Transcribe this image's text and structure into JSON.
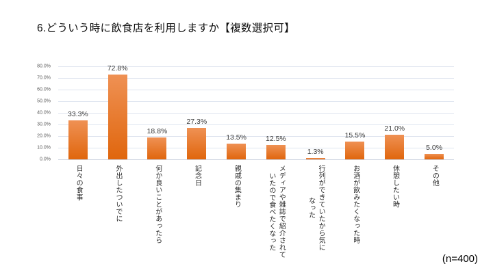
{
  "footnote": "(n=400)",
  "chart_data": {
    "type": "bar",
    "title": "6.どういう時に飲食店を利用しますか【複数選択可】",
    "categories": [
      "日々の食事",
      "外出したついでに",
      "何か良いことがあったら",
      "記念日",
      "親戚の集まり",
      "メディアや雑誌で紹介されて\nいたので食べたくなった",
      "行列ができていたから気に\nなった",
      "お酒が飲みたくなった時",
      "休憩したい時",
      "その他"
    ],
    "values": [
      33.3,
      72.8,
      18.8,
      27.3,
      13.5,
      12.5,
      1.3,
      15.5,
      21.0,
      5.0
    ],
    "value_labels": [
      "33.3%",
      "72.8%",
      "18.8%",
      "27.3%",
      "13.5%",
      "12.5%",
      "1.3%",
      "15.5%",
      "21.0%",
      "5.0%"
    ],
    "y_ticks": [
      "80.0%",
      "70.0%",
      "60.0%",
      "50.0%",
      "40.0%",
      "30.0%",
      "20.0%",
      "10.0%",
      "0.0%"
    ],
    "ylim": [
      0,
      80
    ],
    "xlabel": "",
    "ylabel": "",
    "grid": true,
    "legend": false,
    "sample_size": "(n=400)",
    "bar_gradient_top": "#EF9154",
    "bar_gradient_bottom": "#E0660D",
    "gridline_color": "#DEE4EF"
  }
}
